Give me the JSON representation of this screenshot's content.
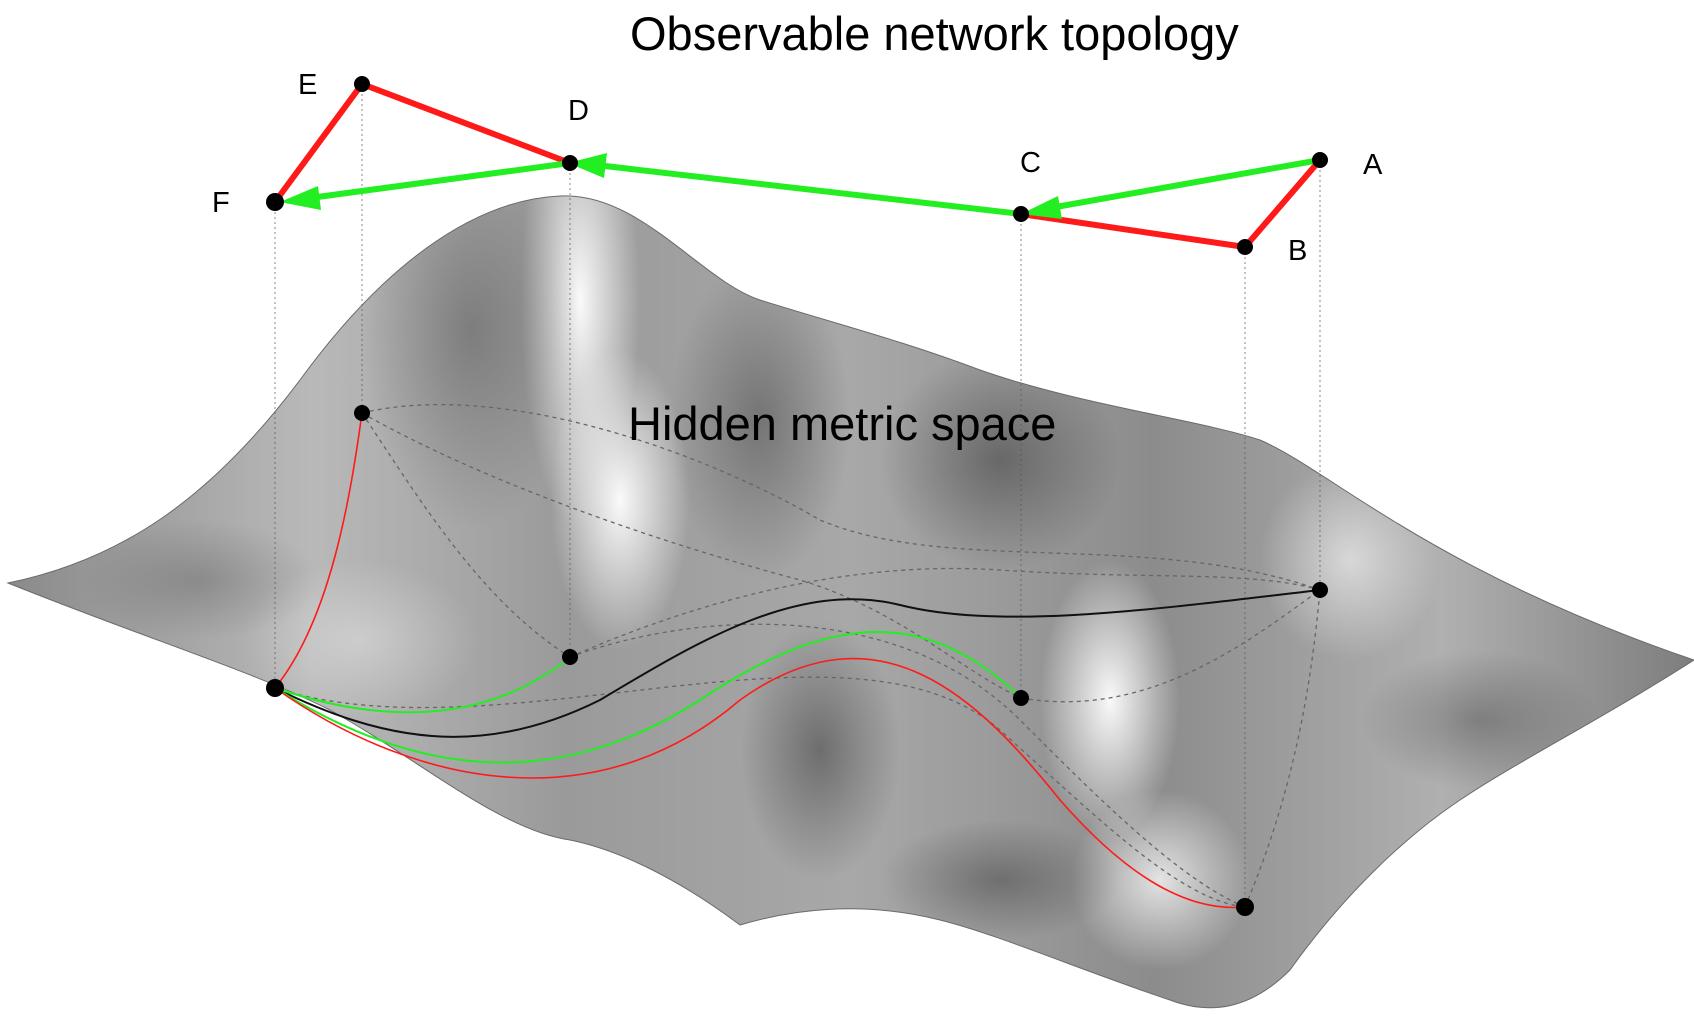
{
  "titles": {
    "top": "Observable network topology",
    "surface": "Hidden metric space"
  },
  "nodes": {
    "A": "A",
    "B": "B",
    "C": "C",
    "D": "D",
    "E": "E",
    "F": "F"
  },
  "colors": {
    "red_path": "#ff1a1a",
    "green_path": "#22ee22",
    "surface_light": "#f4f4f4",
    "surface_dark": "#5a5a5a",
    "node": "#000000"
  }
}
